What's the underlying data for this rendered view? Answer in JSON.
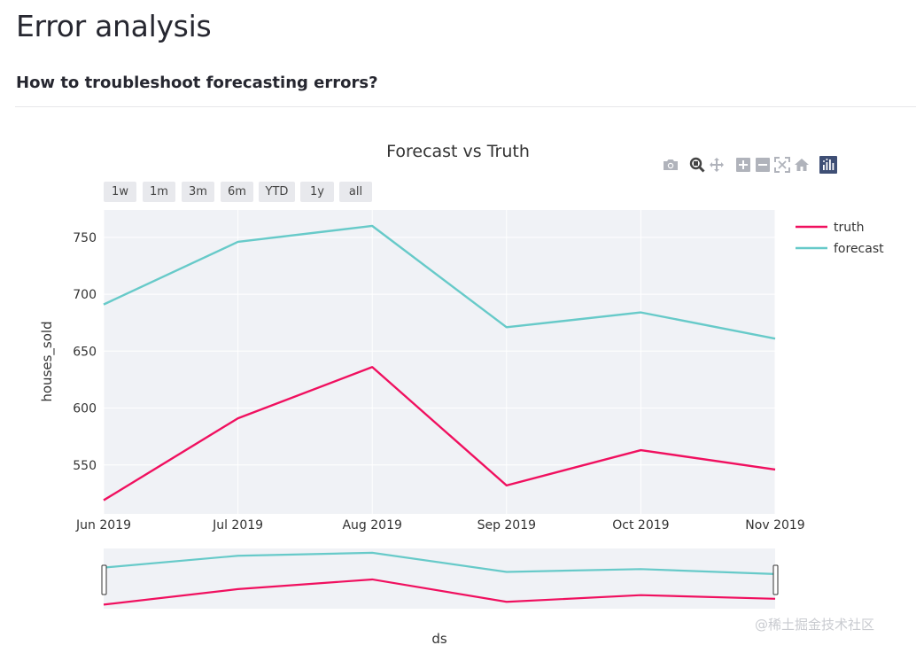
{
  "page": {
    "title": "Error analysis",
    "subtitle": "How to troubleshoot forecasting errors?"
  },
  "range_selector": [
    "1w",
    "1m",
    "3m",
    "6m",
    "YTD",
    "1y",
    "all"
  ],
  "modebar": [
    "camera-icon",
    "zoom-icon",
    "pan-icon",
    "zoom-in-icon",
    "zoom-out-icon",
    "autoscale-icon",
    "reset-axes-icon",
    "plotly-logo-icon"
  ],
  "watermark": "@稀土掘金技术社区",
  "colors": {
    "truth": "#f0105f",
    "forecast": "#67cac9",
    "plot_bg": "#f0f2f6",
    "grid": "#ffffff"
  },
  "chart_data": {
    "type": "line",
    "title": "Forecast vs Truth",
    "xlabel": "ds",
    "ylabel": "houses_sold",
    "categories": [
      "Jun 2019",
      "Jul 2019",
      "Aug 2019",
      "Sep 2019",
      "Oct 2019",
      "Nov 2019"
    ],
    "ylim": [
      507,
      774
    ],
    "yticks": [
      550,
      600,
      650,
      700,
      750
    ],
    "legend_position": "top-right",
    "series": [
      {
        "name": "truth",
        "color": "#f0105f",
        "values": [
          519,
          591,
          636,
          532,
          563,
          546
        ]
      },
      {
        "name": "forecast",
        "color": "#67cac9",
        "values": [
          691,
          746,
          760,
          671,
          684,
          661
        ]
      }
    ]
  }
}
